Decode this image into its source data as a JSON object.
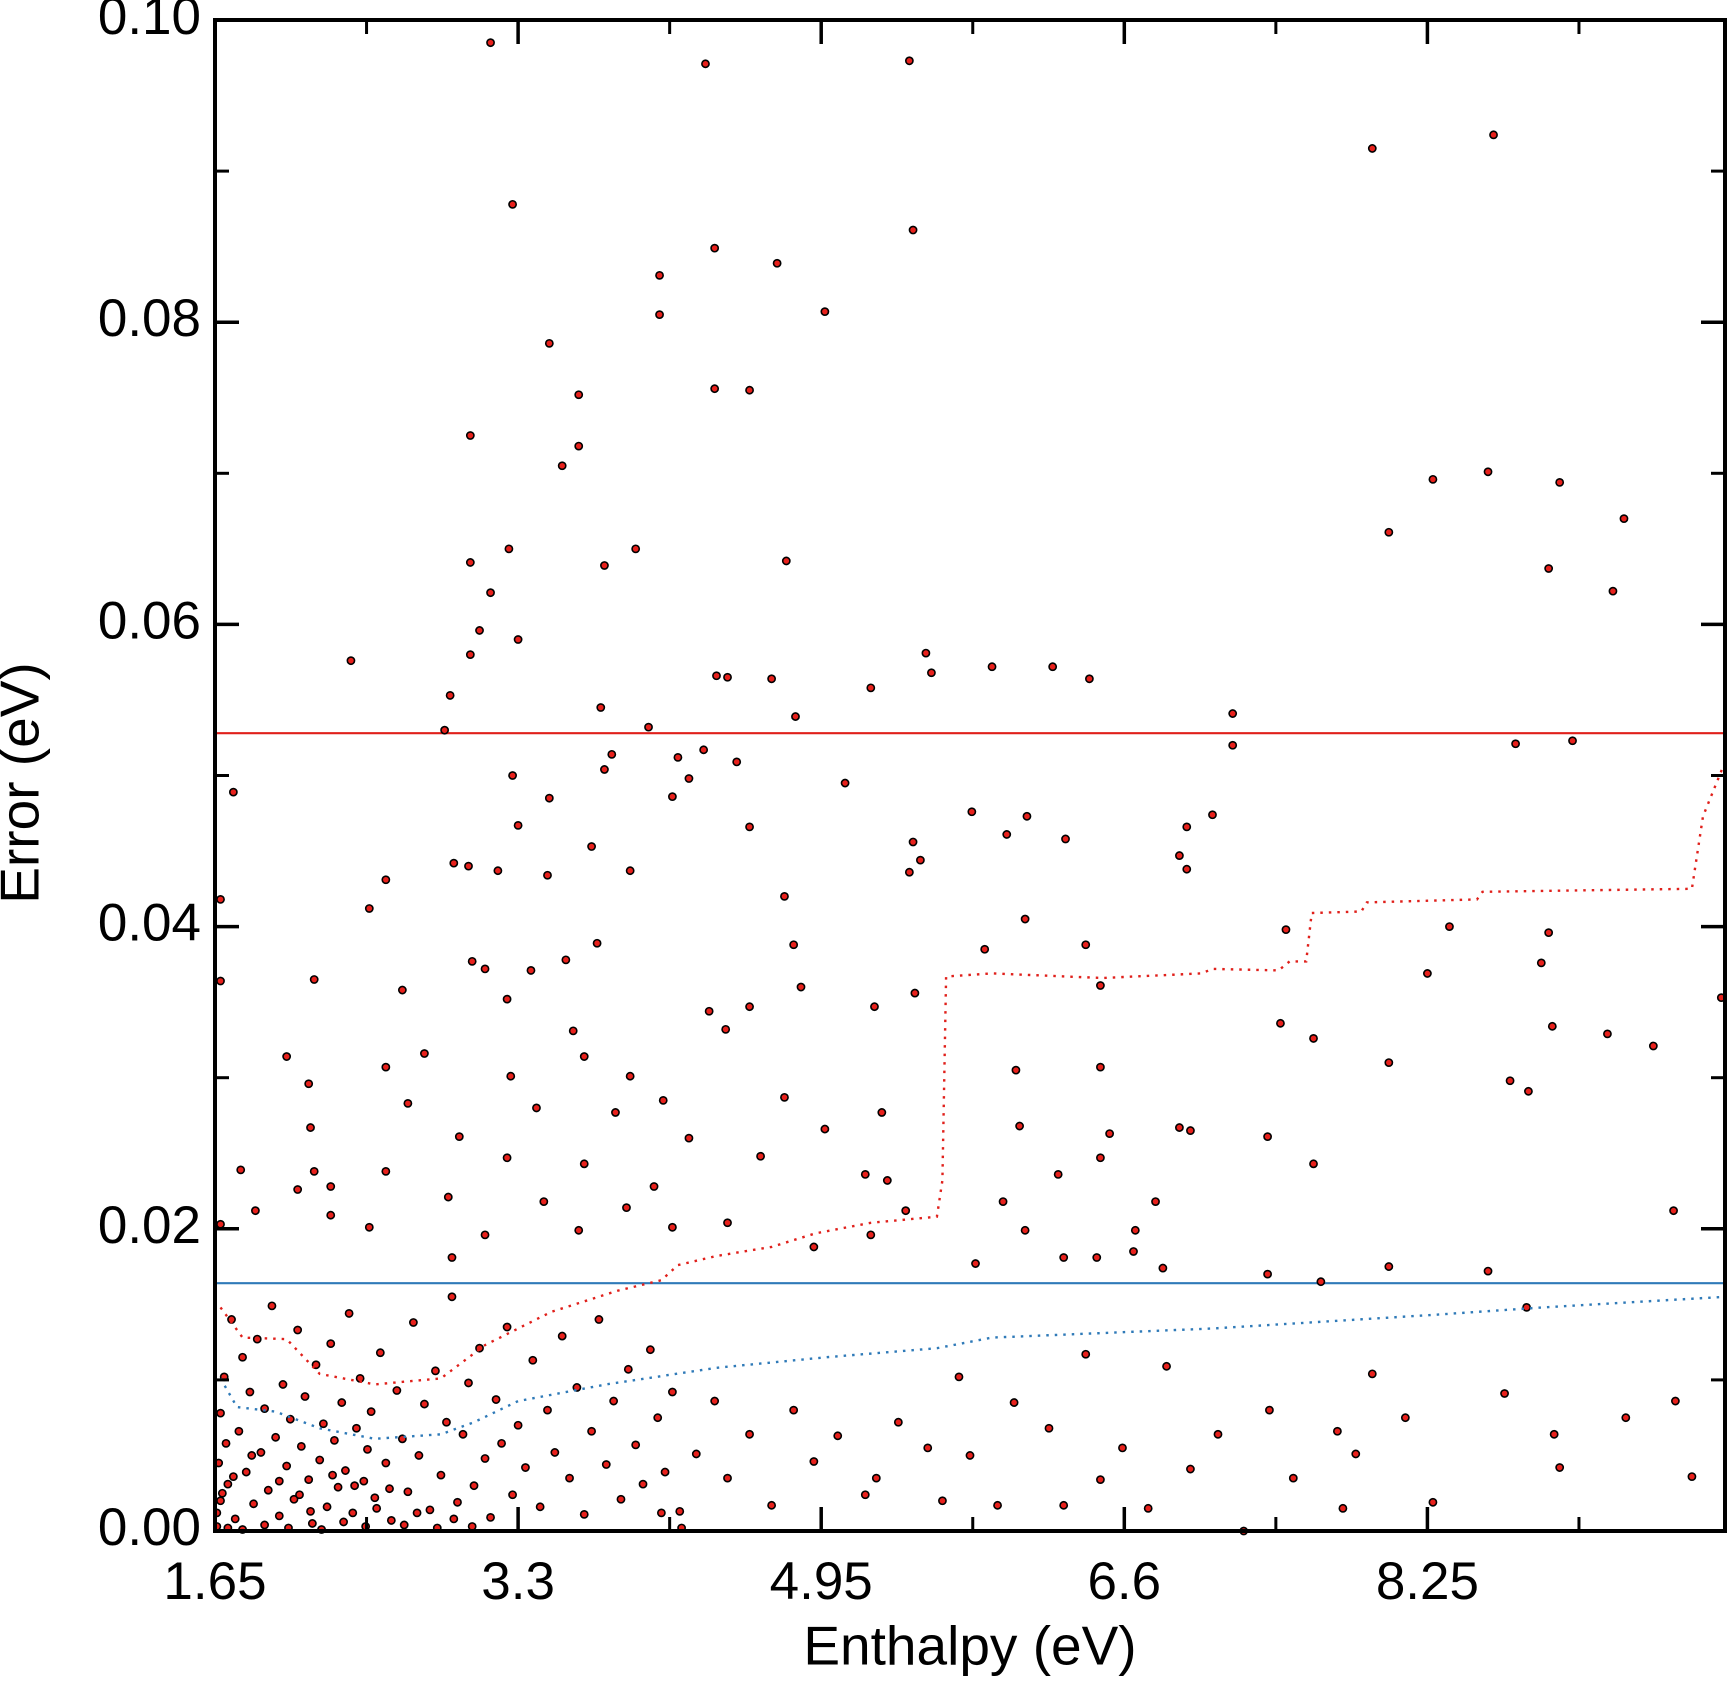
{
  "chart_data": {
    "type": "scatter",
    "xlabel": "Enthalpy (eV)",
    "ylabel": "Error (eV)",
    "xlim": [
      1.65,
      9.87
    ],
    "ylim": [
      0,
      0.1
    ],
    "xticks": [
      1.65,
      3.3,
      4.95,
      6.6,
      8.25
    ],
    "xminorticks": [
      2.475,
      4.125,
      5.775,
      7.425,
      9.075
    ],
    "yticks": [
      {
        "value": 0,
        "label": "0.00"
      },
      0.02,
      0.04,
      0.06,
      0.08,
      {
        "value": 0.1,
        "label": "0.10"
      }
    ],
    "yminorticks": [
      0.01,
      0.03,
      0.05,
      0.07,
      0.09
    ],
    "hlines": [
      {
        "value": 0.0528,
        "color": "#e0201b"
      },
      {
        "value": 0.0164,
        "color": "#2f7ab8"
      }
    ],
    "series": [
      {
        "style": "markers",
        "color": "#e8211c",
        "edgecolor": "#000000",
        "x": [
          3.15,
          4.32,
          5.43,
          7.95,
          8.61,
          3.27,
          5.45,
          4.07,
          4.37,
          4.71,
          4.07,
          4.97,
          3.47,
          4.37,
          4.56,
          3.63,
          3.04,
          3.63,
          3.54,
          8.28,
          8.58,
          8.97,
          9.32,
          8.04,
          3.25,
          3.94,
          4.76,
          3.77,
          3.04,
          8.91,
          9.26,
          3.15,
          3.09,
          3.3,
          3.04,
          2.39,
          5.52,
          5.88,
          6.21,
          6.41,
          5.55,
          4.38,
          4.44,
          4.68,
          5.22,
          2.93,
          3.75,
          4.81,
          7.19,
          2.9,
          4.01,
          7.19,
          8.73,
          9.04,
          4.31,
          3.81,
          4.17,
          4.49,
          3.77,
          3.27,
          4.23,
          1.75,
          5.08,
          3.47,
          4.14,
          5.77,
          6.07,
          7.08,
          6.94,
          5.96,
          6.28,
          4.56,
          3.3,
          5.45,
          5.49,
          6.9,
          6.94,
          5.43,
          2.58,
          2.95,
          3.03,
          3.7,
          3.91,
          3.46,
          3.19,
          4.75,
          2.49,
          1.68,
          6.06,
          8.91,
          7.48,
          4.8,
          3.73,
          6.39,
          5.84,
          8.37,
          8.87,
          8.25,
          2.19,
          1.68,
          3.05,
          3.12,
          3.37,
          3.56,
          4.84,
          9.85,
          5.46,
          4.56,
          5.24,
          3.24,
          2.67,
          6.47,
          7.45,
          8.93,
          9.23,
          3.6,
          4.34,
          4.43,
          7.63,
          9.48,
          2.04,
          2.58,
          2.79,
          3.66,
          6.01,
          6.47,
          8.04,
          8.7,
          8.8,
          3.26,
          3.91,
          2.16,
          4.09,
          4.75,
          2.7,
          3.4,
          3.83,
          5.28,
          6.03,
          6.9,
          6.96,
          6.52,
          7.38,
          4.97,
          2.17,
          2.98,
          4.23,
          4.62,
          6.47,
          2.19,
          3.24,
          3.66,
          1.79,
          6.24,
          7.63,
          5.19,
          5.31,
          2.58,
          4.04,
          2.1,
          2.28,
          2.92,
          3.44,
          3.89,
          4.44,
          6.77,
          5.94,
          9.59,
          5.41,
          1.68,
          1.87,
          2.28,
          2.49,
          6.66,
          6.45,
          6.06,
          3.12,
          3.63,
          4.14,
          5.22,
          4.91,
          6.65,
          6.81,
          8.04,
          7.38,
          8.58,
          7.67,
          6.27,
          5.79,
          2.94,
          7.95,
          8.13,
          8.79,
          8.28,
          8.94,
          8.97,
          9.33,
          9.6,
          9.69,
          8.67,
          7.79,
          7.86,
          7.76,
          7.52,
          7.39,
          7.11,
          7.25,
          6.96,
          6.83,
          6.73,
          6.59,
          6.47,
          6.39,
          6.27,
          6.19,
          6.0,
          5.91,
          5.76,
          5.7,
          5.61,
          5.53,
          5.37,
          5.25,
          5.19,
          5.04,
          4.91,
          4.8,
          4.68,
          4.56,
          4.44,
          4.37,
          4.27,
          4.19,
          4.08,
          1.66,
          1.67,
          1.68,
          1.69,
          1.7,
          1.71,
          1.72,
          1.74,
          1.76,
          1.78,
          1.8,
          1.82,
          1.84,
          1.86,
          1.88,
          1.9,
          1.92,
          1.94,
          1.96,
          1.98,
          2.0,
          2.02,
          2.04,
          2.06,
          2.08,
          2.1,
          2.12,
          2.14,
          2.16,
          2.18,
          2.2,
          2.22,
          2.24,
          2.26,
          2.28,
          2.3,
          2.32,
          2.34,
          2.36,
          2.38,
          2.4,
          2.42,
          2.44,
          2.46,
          2.48,
          2.5,
          2.52,
          2.55,
          2.58,
          2.61,
          2.64,
          2.67,
          2.7,
          2.73,
          2.76,
          2.79,
          2.82,
          2.85,
          2.88,
          2.91,
          2.94,
          2.97,
          3.0,
          3.03,
          3.06,
          3.09,
          3.12,
          3.15,
          3.18,
          3.21,
          3.24,
          3.27,
          3.3,
          3.34,
          3.38,
          3.42,
          3.46,
          3.5,
          3.54,
          3.58,
          3.62,
          3.66,
          3.7,
          3.74,
          3.78,
          3.82,
          3.86,
          3.9,
          3.94,
          3.98,
          4.02,
          4.06,
          4.1,
          4.14,
          4.18,
          1.66,
          1.68,
          1.72,
          1.75,
          1.8,
          1.85,
          1.92,
          2.0,
          2.05,
          2.11,
          2.17,
          2.23,
          2.29,
          2.35,
          2.41,
          2.47,
          2.53,
          2.6,
          2.68,
          2.75,
          2.86,
          2.95,
          3.05
        ],
        "y": [
          0.0985,
          0.0971,
          0.0973,
          0.0915,
          0.0924,
          0.0878,
          0.0861,
          0.0831,
          0.0849,
          0.0839,
          0.0805,
          0.0807,
          0.0786,
          0.0756,
          0.0755,
          0.0752,
          0.0725,
          0.0718,
          0.0705,
          0.0696,
          0.0701,
          0.0694,
          0.067,
          0.0661,
          0.065,
          0.065,
          0.0642,
          0.0639,
          0.0641,
          0.0637,
          0.0622,
          0.0621,
          0.0596,
          0.059,
          0.058,
          0.0576,
          0.0581,
          0.0572,
          0.0572,
          0.0564,
          0.0568,
          0.0566,
          0.0565,
          0.0564,
          0.0558,
          0.0553,
          0.0545,
          0.0539,
          0.0541,
          0.053,
          0.0532,
          0.052,
          0.0521,
          0.0523,
          0.0517,
          0.0514,
          0.0512,
          0.0509,
          0.0504,
          0.05,
          0.0498,
          0.0489,
          0.0495,
          0.0485,
          0.0486,
          0.0476,
          0.0473,
          0.0474,
          0.0466,
          0.0461,
          0.0458,
          0.0466,
          0.0467,
          0.0456,
          0.0444,
          0.0447,
          0.0438,
          0.0436,
          0.0431,
          0.0442,
          0.044,
          0.0453,
          0.0437,
          0.0434,
          0.0437,
          0.042,
          0.0412,
          0.0418,
          0.0405,
          0.0396,
          0.0398,
          0.0388,
          0.0389,
          0.0388,
          0.0385,
          0.04,
          0.0376,
          0.0369,
          0.0365,
          0.0364,
          0.0377,
          0.0372,
          0.0371,
          0.0378,
          0.036,
          0.0353,
          0.0356,
          0.0347,
          0.0347,
          0.0352,
          0.0358,
          0.0361,
          0.0336,
          0.0334,
          0.0329,
          0.0331,
          0.0344,
          0.0332,
          0.0326,
          0.0321,
          0.0314,
          0.0307,
          0.0316,
          0.0314,
          0.0305,
          0.0307,
          0.031,
          0.0298,
          0.0291,
          0.0301,
          0.0301,
          0.0296,
          0.0285,
          0.0287,
          0.0283,
          0.028,
          0.0277,
          0.0277,
          0.0268,
          0.0267,
          0.0265,
          0.0263,
          0.0261,
          0.0266,
          0.0267,
          0.0261,
          0.026,
          0.0248,
          0.0247,
          0.0238,
          0.0247,
          0.0243,
          0.0239,
          0.0236,
          0.0243,
          0.0236,
          0.0232,
          0.0238,
          0.0228,
          0.0226,
          0.0228,
          0.0221,
          0.0218,
          0.0214,
          0.0204,
          0.0218,
          0.0218,
          0.0212,
          0.0212,
          0.0203,
          0.0212,
          0.0209,
          0.0201,
          0.0199,
          0.0181,
          0.0199,
          0.0196,
          0.0199,
          0.0201,
          0.0196,
          0.0188,
          0.0185,
          0.0174,
          0.0175,
          0.017,
          0.0172,
          0.0165,
          0.0181,
          0.0177,
          0.0181,
          0.0104,
          0.0075,
          0.0148,
          0.0019,
          0.0064,
          0.0042,
          0.0075,
          0.0086,
          0.0036,
          0.0091,
          0.0015,
          0.0051,
          0.0066,
          0.0035,
          0.008,
          0.0064,
          0.0,
          0.0041,
          0.0109,
          0.0015,
          0.0055,
          0.0034,
          0.0117,
          0.0017,
          0.0068,
          0.0085,
          0.0017,
          0.005,
          0.0102,
          0.002,
          0.0055,
          0.0072,
          0.0035,
          0.0024,
          0.0063,
          0.0046,
          0.008,
          0.0017,
          0.0064,
          0.0035,
          0.0086,
          0.0051,
          0.0002,
          0.0012,
          0.0012,
          0.0045,
          0.0078,
          0.0025,
          0.0102,
          0.0058,
          0.0031,
          0.014,
          0.0008,
          0.0066,
          0.0115,
          0.0039,
          0.0092,
          0.0018,
          0.0127,
          0.0052,
          0.0081,
          0.0027,
          0.0149,
          0.0062,
          0.001,
          0.0097,
          0.0043,
          0.0074,
          0.0021,
          0.0133,
          0.0056,
          0.0089,
          0.0034,
          0.0005,
          0.011,
          0.0047,
          0.0071,
          0.0016,
          0.0124,
          0.006,
          0.0029,
          0.0085,
          0.004,
          0.0144,
          0.0012,
          0.0068,
          0.0101,
          0.0033,
          0.0054,
          0.0079,
          0.0022,
          0.0118,
          0.0045,
          0.0007,
          0.0093,
          0.0061,
          0.0026,
          0.0138,
          0.005,
          0.0084,
          0.0014,
          0.0106,
          0.0037,
          0.0072,
          0.0155,
          0.0019,
          0.0064,
          0.0098,
          0.003,
          0.0121,
          0.0048,
          0.0009,
          0.0087,
          0.0058,
          0.0135,
          0.0024,
          0.007,
          0.0042,
          0.0113,
          0.0016,
          0.008,
          0.0052,
          0.0129,
          0.0035,
          0.0095,
          0.0011,
          0.0066,
          0.014,
          0.0044,
          0.0086,
          0.0021,
          0.0107,
          0.0057,
          0.0031,
          0.012,
          0.0075,
          0.0039,
          0.0092,
          0.0013,
          0.0003,
          0.002,
          0.0002,
          0.0036,
          0.0001,
          0.005,
          0.0004,
          0.0033,
          0.0002,
          0.0024,
          0.0013,
          0.0001,
          0.0037,
          0.0006,
          0.003,
          0.0003,
          0.0015,
          0.0028,
          0.0004,
          0.0012,
          0.0002,
          0.0008,
          0.0003
        ]
      },
      {
        "style": "dotted",
        "color": "#e0201b",
        "x": [
          1.68,
          1.8,
          2.04,
          2.22,
          2.52,
          2.88,
          3.12,
          3.48,
          3.84,
          4.08,
          4.17,
          4.38,
          4.68,
          4.92,
          5.22,
          5.58,
          5.61,
          5.63,
          5.88,
          6.48,
          7.02,
          7.08,
          7.44,
          7.5,
          7.59,
          7.62,
          7.89,
          7.92,
          8.52,
          8.55,
          9.69,
          9.75,
          9.87
        ],
        "y": [
          0.0148,
          0.0128,
          0.0127,
          0.0104,
          0.0097,
          0.0101,
          0.0123,
          0.0145,
          0.0159,
          0.0166,
          0.0176,
          0.0182,
          0.0188,
          0.0197,
          0.0204,
          0.0208,
          0.0232,
          0.0367,
          0.0369,
          0.0366,
          0.0369,
          0.0372,
          0.0371,
          0.0377,
          0.0377,
          0.0409,
          0.041,
          0.0416,
          0.0418,
          0.0423,
          0.0425,
          0.0473,
          0.0509
        ]
      },
      {
        "style": "dotted",
        "color": "#2f7ab8",
        "x": [
          1.68,
          1.77,
          1.98,
          2.22,
          2.52,
          2.88,
          3.06,
          3.3,
          3.78,
          4.38,
          4.98,
          5.58,
          5.88,
          7.08,
          8.28,
          8.88,
          9.87
        ],
        "y": [
          0.0101,
          0.0082,
          0.0079,
          0.0068,
          0.0061,
          0.0064,
          0.0072,
          0.0086,
          0.0097,
          0.0108,
          0.0115,
          0.0121,
          0.0128,
          0.0134,
          0.0143,
          0.0148,
          0.0155
        ]
      }
    ]
  }
}
